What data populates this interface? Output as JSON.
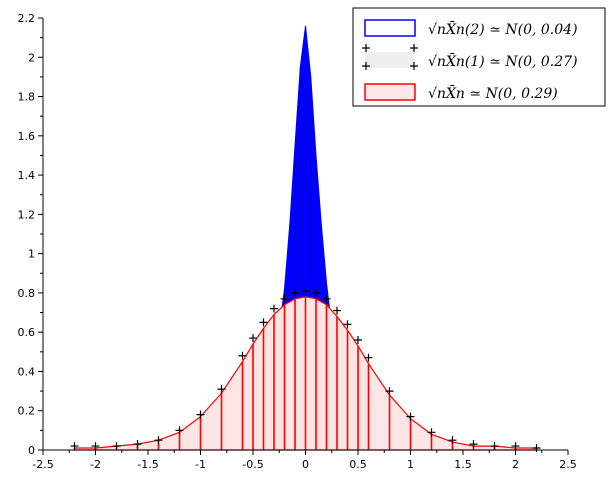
{
  "chart_data": {
    "type": "bar",
    "title": "",
    "xlabel": "",
    "ylabel": "",
    "xlim": [
      -2.5,
      2.5
    ],
    "ylim": [
      0,
      2.2
    ],
    "x_ticks": [
      -2.5,
      -2,
      -1.5,
      -1,
      -0.5,
      0,
      0.5,
      1,
      1.5,
      2,
      2.5
    ],
    "x_tick_labels": [
      "-2.5",
      "-2",
      "-1.5",
      "-1",
      "-0.5",
      "0",
      "0.5",
      "1",
      "1.5",
      "2",
      "2.5"
    ],
    "y_ticks": [
      0,
      0.2,
      0.4,
      0.6,
      0.8,
      1,
      1.2,
      1.4,
      1.6,
      1.8,
      2,
      2.2
    ],
    "y_tick_labels": [
      "0",
      "0.2",
      "0.4",
      "0.6",
      "0.8",
      "1",
      "1.2",
      "1.4",
      "1.6",
      "1.8",
      "2",
      "2.2"
    ],
    "grid": false,
    "legend_position": "top-right",
    "series": [
      {
        "name": "√nX̄n(2) ≃ N(0, 0.04)",
        "style": "histogram",
        "color": "#0000ff",
        "edge_color": "#0000ff",
        "x": [
          -0.3,
          -0.25,
          -0.2,
          -0.15,
          -0.1,
          -0.05,
          0,
          0.05,
          0.1,
          0.15,
          0.2,
          0.25,
          0.3
        ],
        "values": [
          0.45,
          0.62,
          0.82,
          1.15,
          1.55,
          1.95,
          2.16,
          1.9,
          1.5,
          1.15,
          0.85,
          0.62,
          0.45
        ]
      },
      {
        "name": "√nX̄n(1) ≃ N(0, 0.27)",
        "style": "markers",
        "marker": "+",
        "color": "#000000",
        "x": [
          -2.2,
          -2.0,
          -1.8,
          -1.6,
          -1.4,
          -1.2,
          -1.0,
          -0.8,
          -0.6,
          -0.5,
          -0.4,
          -0.3,
          -0.2,
          -0.1,
          0,
          0.1,
          0.2,
          0.3,
          0.4,
          0.5,
          0.6,
          0.8,
          1.0,
          1.2,
          1.4,
          1.6,
          1.8,
          2.0,
          2.2
        ],
        "values": [
          0.02,
          0.02,
          0.02,
          0.03,
          0.05,
          0.1,
          0.18,
          0.31,
          0.48,
          0.57,
          0.65,
          0.72,
          0.77,
          0.8,
          0.81,
          0.8,
          0.77,
          0.71,
          0.64,
          0.56,
          0.47,
          0.3,
          0.17,
          0.09,
          0.05,
          0.03,
          0.02,
          0.02,
          0.01
        ]
      },
      {
        "name": "√nX̄n ≃ N(0, 0.29)",
        "style": "histogram",
        "color": "#ffffff",
        "edge_color": "#ff0000",
        "x": [
          -2.2,
          -2.0,
          -1.8,
          -1.6,
          -1.4,
          -1.2,
          -1.0,
          -0.8,
          -0.6,
          -0.5,
          -0.4,
          -0.3,
          -0.2,
          -0.1,
          0,
          0.1,
          0.2,
          0.3,
          0.4,
          0.5,
          0.6,
          0.8,
          1.0,
          1.2,
          1.4,
          1.6,
          1.8,
          2.0,
          2.2
        ],
        "values": [
          0.01,
          0.01,
          0.02,
          0.03,
          0.05,
          0.09,
          0.17,
          0.29,
          0.45,
          0.54,
          0.62,
          0.69,
          0.74,
          0.77,
          0.78,
          0.77,
          0.74,
          0.68,
          0.61,
          0.53,
          0.44,
          0.28,
          0.16,
          0.08,
          0.04,
          0.02,
          0.02,
          0.01,
          0.01
        ]
      }
    ],
    "legend_entries": [
      {
        "label": "√nX̄n(2) ≃ N(0, 0.04)"
      },
      {
        "label": "√nX̄n(1) ≃ N(0, 0.27)"
      },
      {
        "label": "√nX̄n ≃ N(0, 0.29)"
      }
    ]
  }
}
